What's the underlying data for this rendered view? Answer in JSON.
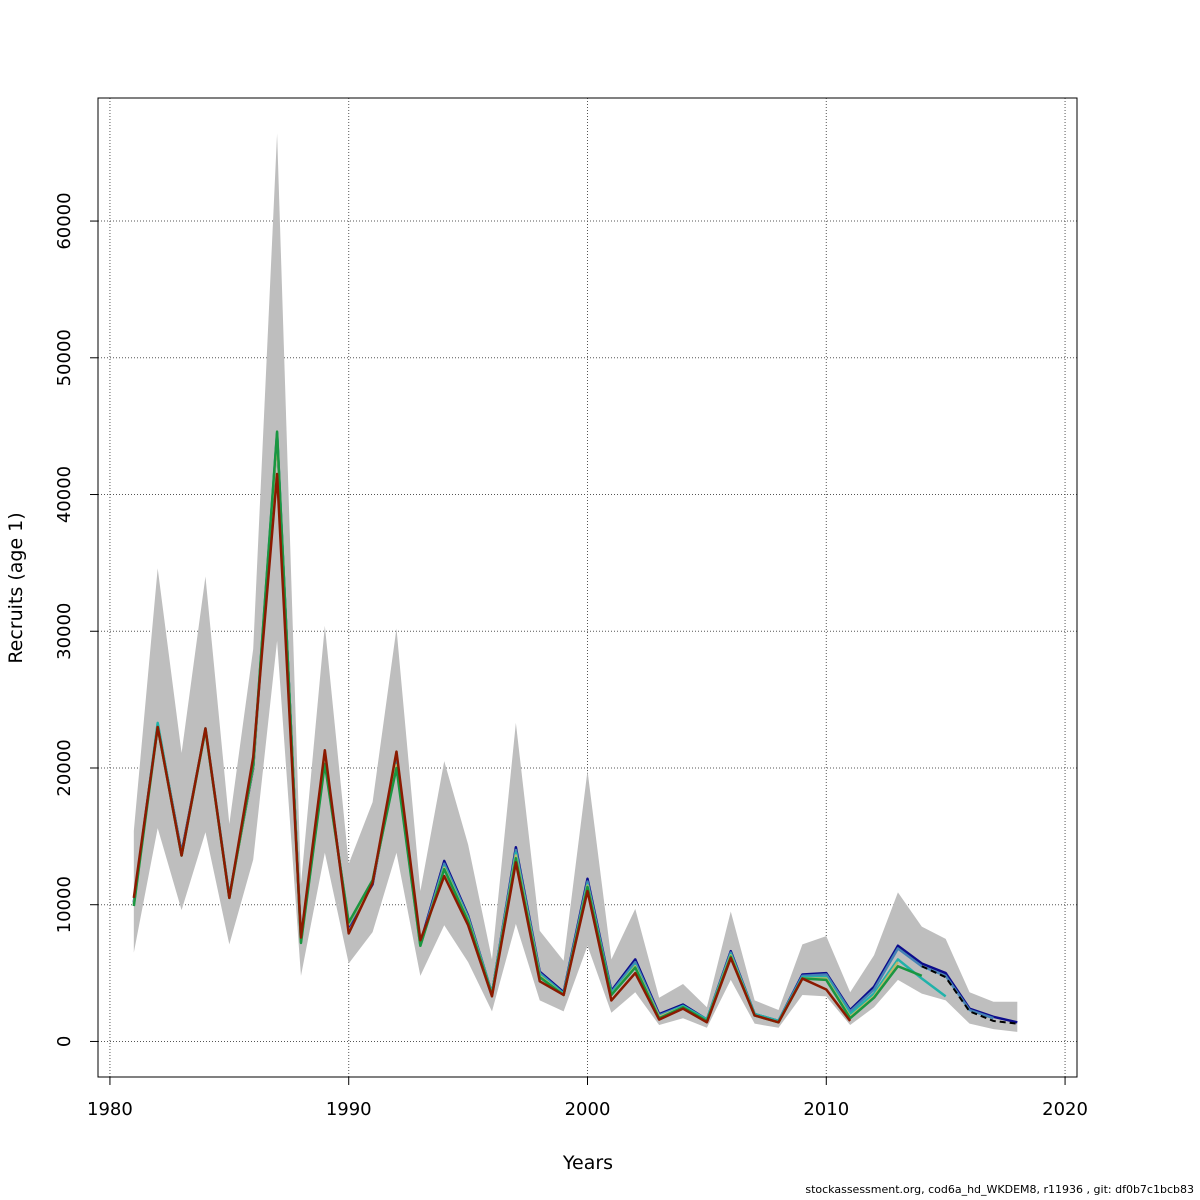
{
  "chart_data": {
    "type": "line",
    "title": "",
    "xlabel": "Years",
    "ylabel": "Recruits (age 1)",
    "xlim": [
      1979.5,
      2020.5
    ],
    "ylim": [
      -2600,
      69000
    ],
    "x_ticks": [
      1980,
      1990,
      2000,
      2010,
      2020
    ],
    "y_ticks": [
      0,
      10000,
      20000,
      30000,
      40000,
      50000,
      60000
    ],
    "grid": true,
    "band": {
      "name": "confidence interval",
      "color": "#bebebe",
      "x": [
        1981,
        1982,
        1983,
        1984,
        1985,
        1986,
        1987,
        1988,
        1989,
        1990,
        1991,
        1992,
        1993,
        1994,
        1995,
        1996,
        1997,
        1998,
        1999,
        2000,
        2001,
        2002,
        2003,
        2004,
        2005,
        2006,
        2007,
        2008,
        2009,
        2010,
        2011,
        2012,
        2013,
        2014,
        2015,
        2016,
        2017,
        2018
      ],
      "upper": [
        15400,
        34600,
        21100,
        34000,
        15900,
        28700,
        66400,
        11500,
        30400,
        13000,
        17500,
        30200,
        11000,
        20500,
        14400,
        6000,
        23300,
        8100,
        5900,
        19800,
        6000,
        9700,
        3200,
        4200,
        2500,
        9500,
        3000,
        2300,
        7100,
        7700,
        3600,
        6300,
        10900,
        8400,
        7500,
        3600,
        2900,
        2900
      ],
      "lower": [
        6500,
        15600,
        9600,
        15300,
        7100,
        13300,
        29300,
        4800,
        13800,
        5700,
        8000,
        13800,
        4800,
        8500,
        5800,
        2200,
        8600,
        3000,
        2200,
        7000,
        2100,
        3600,
        1200,
        1700,
        1000,
        4500,
        1300,
        1000,
        3400,
        3300,
        1200,
        2500,
        4500,
        3500,
        3000,
        1300,
        900,
        700
      ]
    },
    "series": [
      {
        "color": "#0c0c8c",
        "x": [
          1981,
          1982,
          1983,
          1984,
          1985,
          1986,
          1987,
          1988,
          1989,
          1990,
          1991,
          1992,
          1993,
          1994,
          1995,
          1996,
          1997,
          1998,
          1999,
          2000,
          2001,
          2002,
          2003,
          2004,
          2005,
          2006,
          2007,
          2008,
          2009,
          2010,
          2011,
          2012,
          2013,
          2014,
          2015,
          2016,
          2017,
          2018
        ],
        "values": [
          10200,
          23100,
          13800,
          22800,
          10600,
          20000,
          44300,
          7500,
          20800,
          8400,
          11500,
          20700,
          7200,
          13200,
          9200,
          3500,
          14200,
          5100,
          3600,
          11900,
          3700,
          6000,
          2000,
          2700,
          1600,
          6600,
          2000,
          1500,
          4900,
          5000,
          2300,
          4000,
          7000,
          5700,
          5000,
          2400,
          1800,
          1400
        ]
      },
      {
        "color": "#4682b4",
        "x": [
          1981,
          1982,
          1983,
          1984,
          1985,
          1986,
          1987,
          1988,
          1989,
          1990,
          1991,
          1992,
          1993,
          1994,
          1995,
          1996,
          1997,
          1998,
          1999,
          2000,
          2001,
          2002,
          2003,
          2004,
          2005,
          2006,
          2007,
          2008,
          2009,
          2010,
          2011,
          2012,
          2013,
          2014,
          2015,
          2016,
          2017
        ],
        "values": [
          10100,
          23200,
          13700,
          22800,
          10600,
          20100,
          44400,
          7400,
          20600,
          8500,
          11600,
          20500,
          7100,
          13000,
          9100,
          3500,
          14000,
          5000,
          3500,
          11700,
          3600,
          5800,
          1900,
          2600,
          1600,
          6500,
          2000,
          1500,
          4800,
          4900,
          2200,
          3800,
          6800,
          5500,
          4800,
          2300,
          1700
        ]
      },
      {
        "color": "#20b2aa",
        "x": [
          1981,
          1982,
          1983,
          1984,
          1985,
          1986,
          1987,
          1988,
          1989,
          1990,
          1991,
          1992,
          1993,
          1994,
          1995,
          1996,
          1997,
          1998,
          1999,
          2000,
          2001,
          2002,
          2003,
          2004,
          2005,
          2006,
          2007,
          2008,
          2009,
          2010,
          2011,
          2012,
          2013,
          2014,
          2015
        ],
        "values": [
          10000,
          23300,
          13600,
          22900,
          10600,
          20200,
          44500,
          7300,
          20500,
          8600,
          11700,
          20300,
          7000,
          12800,
          9000,
          3500,
          13800,
          4900,
          3500,
          11500,
          3500,
          5600,
          1800,
          2600,
          1600,
          6400,
          2000,
          1500,
          4700,
          4700,
          2000,
          3500,
          6000,
          4600,
          3300
        ]
      },
      {
        "color": "#bdb76b",
        "x": [
          1981,
          1982,
          1983,
          1984,
          1985,
          1986,
          1987,
          1988,
          1989,
          1990,
          1991,
          1992,
          1993,
          1994,
          1995,
          1996,
          1997,
          1998,
          1999,
          2000,
          2001,
          2002,
          2003,
          2004,
          2005,
          2006,
          2007,
          2008,
          2009,
          2010,
          2011,
          2012,
          2013
        ],
        "values": [
          10000,
          23000,
          13600,
          22800,
          10500,
          20100,
          44200,
          7300,
          20400,
          8600,
          11700,
          20200,
          7000,
          12700,
          8900,
          3400,
          13600,
          4800,
          3400,
          11400,
          3400,
          5500,
          1800,
          2500,
          1500,
          6300,
          1900,
          1400,
          4600,
          4600,
          1800,
          3300,
          5800
        ]
      },
      {
        "color": "#1a9641",
        "x": [
          1981,
          1982,
          1983,
          1984,
          1985,
          1986,
          1987,
          1988,
          1989,
          1990,
          1991,
          1992,
          1993,
          1994,
          1995,
          1996,
          1997,
          1998,
          1999,
          2000,
          2001,
          2002,
          2003,
          2004,
          2005,
          2006,
          2007,
          2008,
          2009,
          2010,
          2011,
          2012,
          2013,
          2014
        ],
        "values": [
          9900,
          23000,
          13600,
          22800,
          10500,
          20200,
          44600,
          7200,
          20300,
          8700,
          11800,
          20000,
          7000,
          12600,
          8800,
          3400,
          13400,
          4700,
          3400,
          11300,
          3400,
          5400,
          1700,
          2500,
          1500,
          6200,
          1900,
          1400,
          4600,
          4500,
          1700,
          3200,
          5500,
          4800
        ]
      },
      {
        "color": "#8b1a00",
        "x": [
          1981,
          1982,
          1983,
          1984,
          1985,
          1986,
          1987,
          1988,
          1989,
          1990,
          1991,
          1992,
          1993,
          1994,
          1995,
          1996,
          1997,
          1998,
          1999,
          2000,
          2001,
          2002,
          2003,
          2004,
          2005,
          2006,
          2007,
          2008,
          2009,
          2010,
          2011
        ],
        "values": [
          10500,
          23000,
          13600,
          22900,
          10500,
          20800,
          41500,
          7600,
          21300,
          7900,
          11600,
          21200,
          7400,
          12100,
          8500,
          3300,
          13100,
          4400,
          3400,
          11000,
          3000,
          5000,
          1600,
          2400,
          1400,
          6100,
          1900,
          1400,
          4600,
          3800,
          1500
        ]
      },
      {
        "color": "#000000",
        "dashed": true,
        "x": [
          2014,
          2015,
          2016,
          2017,
          2018
        ],
        "values": [
          5500,
          4700,
          2200,
          1500,
          1300
        ]
      }
    ]
  },
  "footer": "stockassessment.org, cod6a_hd_WKDEM8, r11936 , git: df0b7c1bcb83"
}
